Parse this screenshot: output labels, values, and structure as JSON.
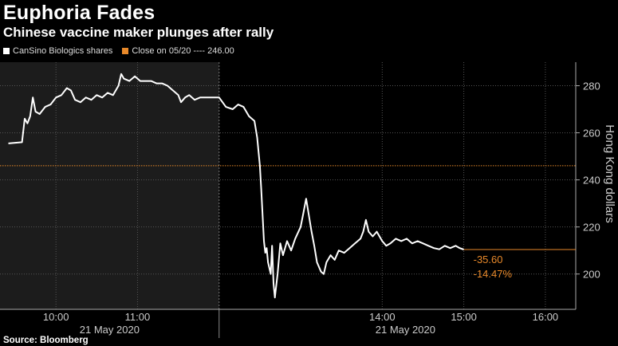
{
  "title": "Euphoria Fades",
  "subtitle": "Chinese vaccine maker plunges after rally",
  "legend": {
    "series_label": "CanSino Biologics shares",
    "close_label": "Close on 05/20 ---- 246.00"
  },
  "source": "Source: Bloomberg",
  "annotations": {
    "change": "-35.60",
    "pct": "-14.47%"
  },
  "colors": {
    "background": "#000000",
    "premarket_band": "#1c1c1c",
    "line": "#ffffff",
    "close_ref": "#e8892a",
    "grid": "#555555",
    "axis_text": "#cccccc"
  },
  "chart_data": {
    "type": "line",
    "title": "Euphoria Fades",
    "subtitle": "Chinese vaccine maker plunges after rally",
    "ylabel": "Hong Kong dollars",
    "ylim": [
      185,
      290
    ],
    "yticks": [
      200,
      220,
      240,
      260,
      280
    ],
    "xlim": [
      "09:20",
      "16:20"
    ],
    "x_tick_labels": [
      "10:00",
      "11:00",
      "14:00",
      "15:00",
      "16:00"
    ],
    "x_tick_times": [
      "10:00",
      "11:00",
      "14:00",
      "15:00",
      "16:00"
    ],
    "date_labels": [
      "21 May 2020",
      "21 May 2020"
    ],
    "session_break": "12:00",
    "reference_line": {
      "name": "Close on 05/20",
      "value": 246.0
    },
    "last_value": 210.4,
    "series": [
      {
        "name": "CanSino Biologics shares",
        "points": [
          [
            "09:25",
            255.5
          ],
          [
            "09:35",
            256
          ],
          [
            "09:37",
            266
          ],
          [
            "09:39",
            264
          ],
          [
            "09:41",
            267
          ],
          [
            "09:43",
            275
          ],
          [
            "09:45",
            269
          ],
          [
            "09:48",
            268
          ],
          [
            "09:52",
            271
          ],
          [
            "09:56",
            272
          ],
          [
            "10:00",
            275
          ],
          [
            "10:04",
            276
          ],
          [
            "10:08",
            279
          ],
          [
            "10:11",
            278
          ],
          [
            "10:14",
            274
          ],
          [
            "10:18",
            273
          ],
          [
            "10:22",
            275
          ],
          [
            "10:26",
            274
          ],
          [
            "10:30",
            276
          ],
          [
            "10:34",
            275
          ],
          [
            "10:38",
            277
          ],
          [
            "10:42",
            276
          ],
          [
            "10:46",
            280
          ],
          [
            "10:48",
            285
          ],
          [
            "10:50",
            283
          ],
          [
            "10:54",
            282
          ],
          [
            "10:58",
            284
          ],
          [
            "11:02",
            282
          ],
          [
            "11:06",
            282
          ],
          [
            "11:10",
            282
          ],
          [
            "11:14",
            281
          ],
          [
            "11:18",
            281
          ],
          [
            "11:22",
            280
          ],
          [
            "11:26",
            278
          ],
          [
            "11:30",
            276
          ],
          [
            "11:32",
            273
          ],
          [
            "11:35",
            275
          ],
          [
            "11:38",
            276
          ],
          [
            "11:42",
            274
          ],
          [
            "11:46",
            275
          ],
          [
            "11:50",
            275
          ],
          [
            "11:55",
            275
          ],
          [
            "12:00",
            275
          ],
          [
            "12:05",
            271
          ],
          [
            "12:10",
            270
          ],
          [
            "12:14",
            272
          ],
          [
            "12:18",
            271
          ],
          [
            "12:22",
            267
          ],
          [
            "12:26",
            265
          ],
          [
            "12:28",
            258
          ],
          [
            "12:30",
            246
          ],
          [
            "12:31",
            236
          ],
          [
            "12:32",
            225
          ],
          [
            "12:33",
            214
          ],
          [
            "12:34",
            209
          ],
          [
            "12:35",
            211
          ],
          [
            "12:36",
            205
          ],
          [
            "12:38",
            200
          ],
          [
            "12:39",
            212
          ],
          [
            "12:40",
            196
          ],
          [
            "12:41",
            190
          ],
          [
            "12:43",
            200
          ],
          [
            "12:45",
            213
          ],
          [
            "12:47",
            208
          ],
          [
            "12:50",
            214
          ],
          [
            "12:53",
            210
          ],
          [
            "12:56",
            215
          ],
          [
            "13:00",
            220
          ],
          [
            "13:02",
            226
          ],
          [
            "13:04",
            232
          ],
          [
            "13:06",
            225
          ],
          [
            "13:08",
            218
          ],
          [
            "13:10",
            212
          ],
          [
            "13:12",
            205
          ],
          [
            "13:15",
            201
          ],
          [
            "13:17",
            200
          ],
          [
            "13:19",
            205
          ],
          [
            "13:22",
            208
          ],
          [
            "13:25",
            206
          ],
          [
            "13:28",
            210
          ],
          [
            "13:32",
            209
          ],
          [
            "13:36",
            211
          ],
          [
            "13:40",
            213
          ],
          [
            "13:44",
            215
          ],
          [
            "13:46",
            218
          ],
          [
            "13:48",
            223
          ],
          [
            "13:50",
            218
          ],
          [
            "13:53",
            216
          ],
          [
            "13:56",
            218
          ],
          [
            "14:00",
            214
          ],
          [
            "14:03",
            212
          ],
          [
            "14:06",
            213
          ],
          [
            "14:10",
            215
          ],
          [
            "14:14",
            214
          ],
          [
            "14:18",
            215
          ],
          [
            "14:22",
            213
          ],
          [
            "14:26",
            214
          ],
          [
            "14:30",
            213
          ],
          [
            "14:34",
            212
          ],
          [
            "14:38",
            211
          ],
          [
            "14:42",
            210.5
          ],
          [
            "14:46",
            212
          ],
          [
            "14:50",
            211
          ],
          [
            "14:54",
            212
          ],
          [
            "14:57",
            211
          ],
          [
            "15:00",
            210.4
          ]
        ]
      }
    ]
  }
}
